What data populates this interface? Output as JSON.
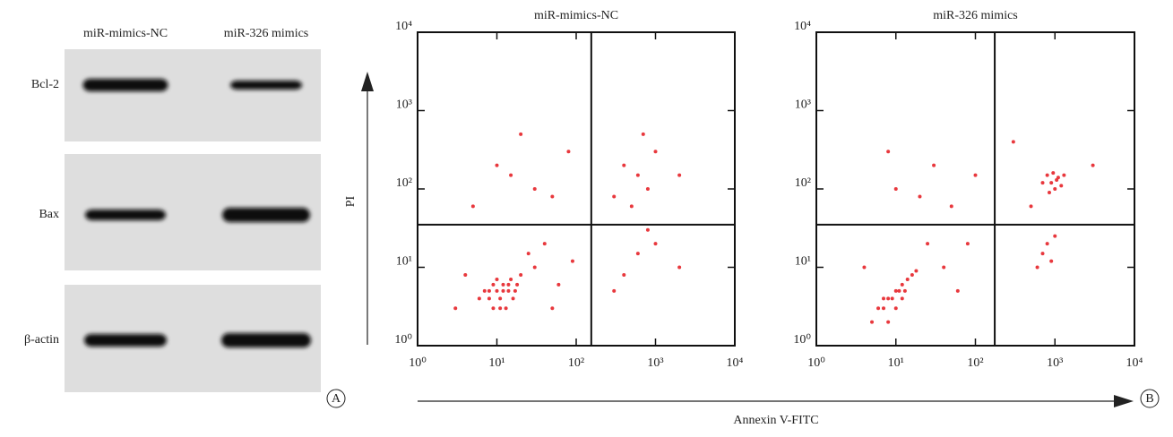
{
  "blot": {
    "columns": [
      "miR-mimics-NC",
      "miR-326 mimics"
    ],
    "rows": [
      "Bcl-2",
      "Bax",
      "β-actin"
    ],
    "panel_label": "A"
  },
  "shared_ylabel": "PI",
  "shared_xlabel": "Annexin V-FITC",
  "panel_label": "B",
  "chart_data": [
    {
      "type": "scatter",
      "title": "miR-mimics-NC",
      "color": "#e8383d",
      "log_x": true,
      "log_y": true,
      "xlim": [
        1,
        10000
      ],
      "ylim": [
        1,
        10000
      ],
      "xticks": [
        {
          "value": 1,
          "label": "10⁰"
        },
        {
          "value": 10,
          "label": "10¹"
        },
        {
          "value": 100,
          "label": "10²"
        },
        {
          "value": 1000,
          "label": "10³"
        },
        {
          "value": 10000,
          "label": "10⁴"
        }
      ],
      "yticks": [
        {
          "value": 1,
          "label": "10⁰"
        },
        {
          "value": 10,
          "label": "10¹"
        },
        {
          "value": 100,
          "label": "10²"
        },
        {
          "value": 1000,
          "label": "10³"
        },
        {
          "value": 10000,
          "label": "10⁴"
        }
      ],
      "quadrant_x": 155,
      "quadrant_y": 35,
      "x": [
        8,
        10,
        12,
        14,
        9,
        11,
        15,
        7,
        13,
        10,
        18,
        6,
        12,
        16,
        9,
        20,
        11,
        14,
        8,
        17,
        4,
        30,
        50,
        25,
        60,
        3,
        40,
        90,
        10,
        30,
        5,
        80,
        20,
        50,
        15,
        600,
        800,
        400,
        1000,
        300,
        700,
        2000,
        500,
        600,
        400,
        1000,
        300,
        2000,
        800
      ],
      "values": [
        4,
        5,
        6,
        5,
        3,
        4,
        7,
        5,
        3,
        7,
        6,
        4,
        5,
        4,
        6,
        8,
        3,
        6,
        5,
        5,
        8,
        10,
        3,
        15,
        6,
        3,
        20,
        12,
        200,
        100,
        60,
        300,
        500,
        80,
        150,
        150,
        100,
        200,
        300,
        80,
        500,
        150,
        60,
        15,
        8,
        20,
        5,
        10,
        30
      ]
    },
    {
      "type": "scatter",
      "title": "miR-326 mimics",
      "color": "#e8383d",
      "log_x": true,
      "log_y": true,
      "xlim": [
        1,
        10000
      ],
      "ylim": [
        1,
        10000
      ],
      "xticks": [
        {
          "value": 1,
          "label": "10⁰"
        },
        {
          "value": 10,
          "label": "10¹"
        },
        {
          "value": 100,
          "label": "10²"
        },
        {
          "value": 1000,
          "label": "10³"
        },
        {
          "value": 10000,
          "label": "10⁴"
        }
      ],
      "yticks": [
        {
          "value": 1,
          "label": "10⁰"
        },
        {
          "value": 10,
          "label": "10¹"
        },
        {
          "value": 100,
          "label": "10²"
        },
        {
          "value": 1000,
          "label": "10³"
        },
        {
          "value": 10000,
          "label": "10⁴"
        }
      ],
      "quadrant_x": 175,
      "quadrant_y": 35,
      "x": [
        6,
        8,
        10,
        12,
        7,
        9,
        14,
        11,
        5,
        16,
        8,
        13,
        10,
        18,
        7,
        12,
        900,
        1100,
        1000,
        800,
        1200,
        950,
        1050,
        700,
        1300,
        850,
        800,
        700,
        1000,
        600,
        900,
        10,
        30,
        50,
        8,
        100,
        20,
        40,
        60,
        4,
        80,
        25,
        300,
        3000,
        500
      ],
      "values": [
        3,
        4,
        5,
        6,
        3,
        4,
        7,
        5,
        2,
        8,
        2,
        5,
        3,
        9,
        4,
        4,
        120,
        140,
        100,
        150,
        110,
        160,
        130,
        120,
        150,
        90,
        20,
        15,
        25,
        10,
        12,
        100,
        200,
        60,
        300,
        150,
        80,
        10,
        5,
        10,
        20,
        20,
        400,
        200,
        60
      ]
    }
  ]
}
